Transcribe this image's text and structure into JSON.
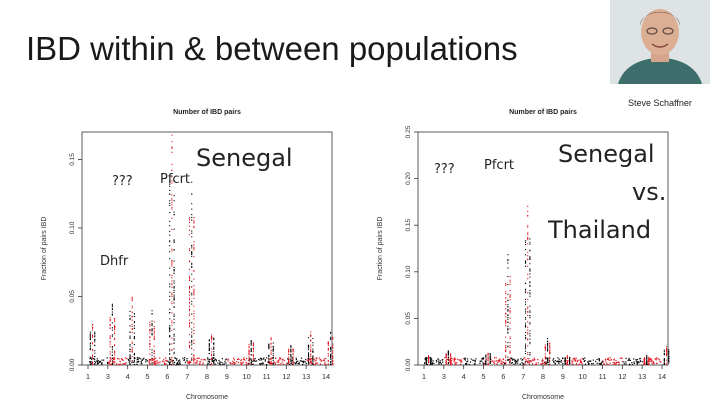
{
  "slide": {
    "title": "IBD within & between populations",
    "author": "Steve Schaffner"
  },
  "chart_data": [
    {
      "type": "scatter",
      "title": "Number of IBD pairs",
      "xlabel": "Chromosome",
      "ylabel": "Fraction of pairs IBD",
      "x": [
        "1",
        "3",
        "4",
        "5",
        "6",
        "7",
        "8",
        "9",
        "10",
        "11",
        "12",
        "13",
        "14"
      ],
      "ylim": [
        0,
        0.17
      ],
      "yticks": [
        "0.00",
        "0.05",
        "0.10",
        "0.15"
      ],
      "ytick_values": [
        0,
        0.05,
        0.1,
        0.15
      ],
      "series": [
        {
          "name": "black",
          "color": "#000000"
        },
        {
          "name": "red",
          "color": "#e0141e"
        }
      ],
      "peaks": [
        {
          "chromosome": "1",
          "value": 0.03
        },
        {
          "chromosome": "3",
          "value": 0.045
        },
        {
          "chromosome": "4",
          "value": 0.05
        },
        {
          "chromosome": "5",
          "value": 0.04
        },
        {
          "chromosome": "6",
          "value": 0.17
        },
        {
          "chromosome": "7",
          "value": 0.135
        },
        {
          "chromosome": "8",
          "value": 0.025
        },
        {
          "chromosome": "10",
          "value": 0.02
        },
        {
          "chromosome": "11",
          "value": 0.02
        },
        {
          "chromosome": "12",
          "value": 0.015
        },
        {
          "chromosome": "13",
          "value": 0.025
        },
        {
          "chromosome": "14",
          "value": 0.025
        }
      ],
      "annotations": {
        "unknown": "???",
        "pfcrt": "Pfcrt",
        "dhfr": "Dhfr",
        "population": "Senegal"
      }
    },
    {
      "type": "scatter",
      "title": "Number of IBD pairs",
      "xlabel": "Chromosome",
      "ylabel": "Fraction of pairs IBD",
      "x": [
        "1",
        "3",
        "4",
        "5",
        "6",
        "7",
        "8",
        "9",
        "10",
        "11",
        "12",
        "13",
        "14"
      ],
      "ylim": [
        0,
        0.25
      ],
      "yticks": [
        "0.00",
        "0.05",
        "0.10",
        "0.15",
        "0.20",
        "0.25"
      ],
      "ytick_values": [
        0,
        0.05,
        0.1,
        0.15,
        0.2,
        0.25
      ],
      "series": [
        {
          "name": "black",
          "color": "#000000"
        },
        {
          "name": "red",
          "color": "#e0141e"
        }
      ],
      "peaks": [
        {
          "chromosome": "1",
          "value": 0.01
        },
        {
          "chromosome": "3",
          "value": 0.015
        },
        {
          "chromosome": "5",
          "value": 0.015
        },
        {
          "chromosome": "6",
          "value": 0.12
        },
        {
          "chromosome": "7",
          "value": 0.17
        },
        {
          "chromosome": "8",
          "value": 0.03
        },
        {
          "chromosome": "9",
          "value": 0.01
        },
        {
          "chromosome": "13",
          "value": 0.01
        },
        {
          "chromosome": "14",
          "value": 0.02
        }
      ],
      "annotations": {
        "unknown": "???",
        "pfcrt": "Pfcrt",
        "population_line1": "Senegal",
        "population_line2": "vs.",
        "population_line3": "Thailand"
      }
    }
  ]
}
